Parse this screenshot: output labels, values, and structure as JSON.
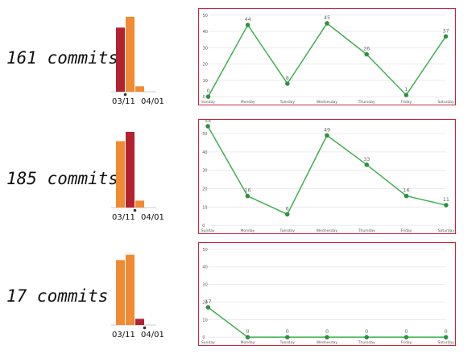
{
  "rows": [
    {
      "commit_label": "161 commits"
    },
    {
      "commit_label": "185 commits"
    },
    {
      "commit_label": "17 commits"
    }
  ],
  "colors": {
    "bar_orange": "#f08a33",
    "bar_red": "#b3222f",
    "line_green": "#3fae4f",
    "point_green": "#2f8f3d",
    "panel_border": "#c8263a",
    "grid": "#e6e6e6",
    "text": "#111111",
    "tick_text": "#555555"
  },
  "chart_data": [
    {
      "type": "bar",
      "categories": [
        "",
        "",
        ""
      ],
      "values": [
        83,
        97,
        7
      ],
      "highlight_index": 0,
      "tick_labels": [
        "03/11",
        "04/01"
      ],
      "ylim": [
        0,
        100
      ]
    },
    {
      "type": "line",
      "categories": [
        "Sunday",
        "Monday",
        "Tuesday",
        "Wednesday",
        "Thursday",
        "Friday",
        "Saturday"
      ],
      "series": [
        {
          "values": [
            0,
            44,
            8,
            45,
            26,
            1,
            37
          ]
        }
      ],
      "yticks": [
        0,
        10,
        20,
        30,
        40,
        50
      ],
      "ylim": [
        0,
        50
      ],
      "data_labels": [
        "0",
        "44",
        "8",
        "45",
        "26",
        "1",
        "37"
      ]
    },
    {
      "type": "bar",
      "categories": [
        "",
        "",
        ""
      ],
      "values": [
        86,
        98,
        9
      ],
      "highlight_index": 1,
      "tick_labels": [
        "03/11",
        "04/01"
      ],
      "ylim": [
        0,
        100
      ]
    },
    {
      "type": "line",
      "categories": [
        "Sunday",
        "Monday",
        "Tuesday",
        "Wednesday",
        "Thursday",
        "Friday",
        "Saturday"
      ],
      "series": [
        {
          "values": [
            54,
            16,
            6,
            49,
            33,
            16,
            11
          ]
        }
      ],
      "yticks": [
        0,
        10,
        20,
        30,
        40,
        50
      ],
      "ylim": [
        0,
        54
      ],
      "data_labels": [
        "54",
        "16",
        "6",
        "49",
        "33",
        "16",
        "11"
      ]
    },
    {
      "type": "bar",
      "categories": [
        "",
        "",
        ""
      ],
      "values": [
        84,
        91,
        8
      ],
      "highlight_index": 2,
      "tick_labels": [
        "03/11",
        "04/01"
      ],
      "ylim": [
        0,
        100
      ]
    },
    {
      "type": "line",
      "categories": [
        "Sunday",
        "Monday",
        "Tuesday",
        "Wednesday",
        "Thursday",
        "Friday",
        "Saturday"
      ],
      "series": [
        {
          "values": [
            17,
            0,
            0,
            0,
            0,
            0,
            0
          ]
        }
      ],
      "yticks": [
        0,
        10,
        20,
        30,
        40,
        50
      ],
      "ylim": [
        0,
        50
      ],
      "data_labels": [
        "17",
        "0",
        "0",
        "0",
        "0",
        "0",
        "0"
      ]
    }
  ]
}
